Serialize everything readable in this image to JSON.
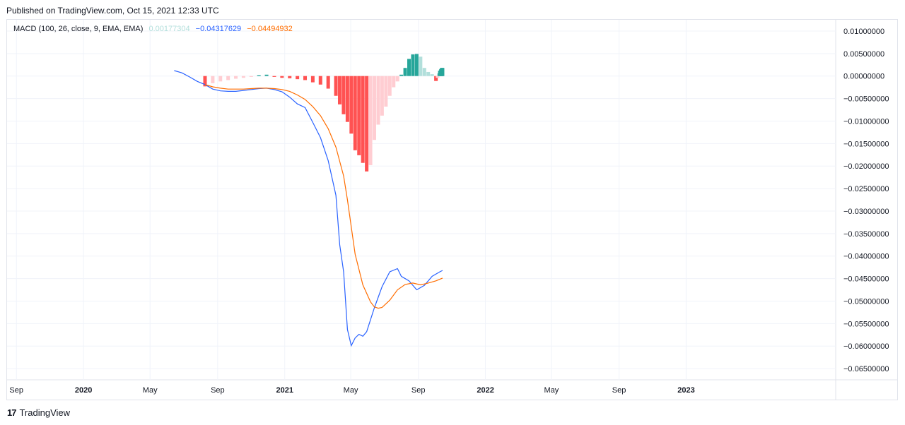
{
  "header": {
    "published": "Published on TradingView.com, Oct 15, 2021 12:33 UTC"
  },
  "legend": {
    "indicator": "MACD (100, 26, close, 9, EMA, EMA)",
    "histogram_value": "0.00177304",
    "macd_value": "−0.04317629",
    "signal_value": "−0.04494932"
  },
  "footer": {
    "brand": "TradingView",
    "logo": "17"
  },
  "colors": {
    "macd": "#2962ff",
    "signal": "#ff6d00",
    "hist_neg_strong": "#ff5252",
    "hist_neg_weak": "#ffcdd2",
    "hist_pos_strong": "#26a69a",
    "hist_pos_weak": "#b2dfdb",
    "grid": "#f0f3fa"
  },
  "chart_data": {
    "type": "line",
    "title": "MACD (100, 26, close, 9, EMA, EMA)",
    "x_type": "date",
    "xlim": [
      "2019-08-15",
      "2023-09-30"
    ],
    "ylim": [
      -0.0675,
      0.0125
    ],
    "grid": true,
    "x_ticks": [
      {
        "date": "2019-09-01",
        "label": "Sep"
      },
      {
        "date": "2020-01-01",
        "label": "2020"
      },
      {
        "date": "2020-05-01",
        "label": "May"
      },
      {
        "date": "2020-09-01",
        "label": "Sep"
      },
      {
        "date": "2021-01-01",
        "label": "2021"
      },
      {
        "date": "2021-05-01",
        "label": "May"
      },
      {
        "date": "2021-09-01",
        "label": "Sep"
      },
      {
        "date": "2022-01-01",
        "label": "2022"
      },
      {
        "date": "2022-05-01",
        "label": "May"
      },
      {
        "date": "2022-09-01",
        "label": "Sep"
      },
      {
        "date": "2023-01-01",
        "label": "2023"
      }
    ],
    "y_ticks": [
      {
        "value": 0.01,
        "label": "0.01000000"
      },
      {
        "value": 0.005,
        "label": "0.00500000"
      },
      {
        "value": 0.0,
        "label": "0.00000000"
      },
      {
        "value": -0.005,
        "label": "−0.00500000"
      },
      {
        "value": -0.01,
        "label": "−0.01000000"
      },
      {
        "value": -0.015,
        "label": "−0.01500000"
      },
      {
        "value": -0.02,
        "label": "−0.02000000"
      },
      {
        "value": -0.025,
        "label": "−0.02500000"
      },
      {
        "value": -0.03,
        "label": "−0.03000000"
      },
      {
        "value": -0.035,
        "label": "−0.03500000"
      },
      {
        "value": -0.04,
        "label": "−0.04000000"
      },
      {
        "value": -0.045,
        "label": "−0.04500000"
      },
      {
        "value": -0.05,
        "label": "−0.05000000"
      },
      {
        "value": -0.055,
        "label": "−0.05500000"
      },
      {
        "value": -0.06,
        "label": "−0.06000000"
      },
      {
        "value": -0.065,
        "label": "−0.06500000"
      }
    ],
    "series": [
      {
        "name": "MACD",
        "color": "#2962ff",
        "points": [
          [
            "2020-06-14",
            0.0012
          ],
          [
            "2020-06-28",
            0.0007
          ],
          [
            "2020-07-12",
            -0.0002
          ],
          [
            "2020-07-26",
            -0.0012
          ],
          [
            "2020-08-09",
            -0.0019
          ],
          [
            "2020-08-23",
            -0.0029
          ],
          [
            "2020-09-06",
            -0.0033
          ],
          [
            "2020-09-20",
            -0.0034
          ],
          [
            "2020-10-04",
            -0.0034
          ],
          [
            "2020-10-18",
            -0.0032
          ],
          [
            "2020-11-01",
            -0.003
          ],
          [
            "2020-11-15",
            -0.0028
          ],
          [
            "2020-11-29",
            -0.0027
          ],
          [
            "2020-12-13",
            -0.003
          ],
          [
            "2020-12-27",
            -0.0035
          ],
          [
            "2021-01-10",
            -0.0047
          ],
          [
            "2021-01-24",
            -0.0062
          ],
          [
            "2021-02-07",
            -0.007
          ],
          [
            "2021-02-21",
            -0.0103
          ],
          [
            "2021-03-07",
            -0.0137
          ],
          [
            "2021-03-21",
            -0.0188
          ],
          [
            "2021-04-04",
            -0.0265
          ],
          [
            "2021-04-11",
            -0.0375
          ],
          [
            "2021-04-18",
            -0.0435
          ],
          [
            "2021-04-25",
            -0.0563
          ],
          [
            "2021-05-02",
            -0.0599
          ],
          [
            "2021-05-09",
            -0.0582
          ],
          [
            "2021-05-16",
            -0.0574
          ],
          [
            "2021-05-23",
            -0.0578
          ],
          [
            "2021-05-30",
            -0.0568
          ],
          [
            "2021-06-13",
            -0.0515
          ],
          [
            "2021-06-27",
            -0.0468
          ],
          [
            "2021-07-11",
            -0.0435
          ],
          [
            "2021-07-25",
            -0.0428
          ],
          [
            "2021-08-01",
            -0.0445
          ],
          [
            "2021-08-15",
            -0.0455
          ],
          [
            "2021-08-29",
            -0.0475
          ],
          [
            "2021-09-12",
            -0.0465
          ],
          [
            "2021-09-26",
            -0.0445
          ],
          [
            "2021-10-10",
            -0.0435
          ],
          [
            "2021-10-15",
            -0.0432
          ]
        ]
      },
      {
        "name": "Signal",
        "color": "#ff6d00",
        "points": [
          [
            "2020-08-09",
            -0.0019
          ],
          [
            "2020-08-23",
            -0.0024
          ],
          [
            "2020-09-06",
            -0.0027
          ],
          [
            "2020-09-20",
            -0.0029
          ],
          [
            "2020-10-04",
            -0.0029
          ],
          [
            "2020-10-18",
            -0.0029
          ],
          [
            "2020-11-01",
            -0.0028
          ],
          [
            "2020-11-15",
            -0.0027
          ],
          [
            "2020-11-29",
            -0.0027
          ],
          [
            "2020-12-13",
            -0.0028
          ],
          [
            "2020-12-27",
            -0.003
          ],
          [
            "2021-01-10",
            -0.0034
          ],
          [
            "2021-01-24",
            -0.0042
          ],
          [
            "2021-02-07",
            -0.0052
          ],
          [
            "2021-02-21",
            -0.0068
          ],
          [
            "2021-03-07",
            -0.0088
          ],
          [
            "2021-03-21",
            -0.0117
          ],
          [
            "2021-04-04",
            -0.0158
          ],
          [
            "2021-04-18",
            -0.0222
          ],
          [
            "2021-04-25",
            -0.0275
          ],
          [
            "2021-05-02",
            -0.0335
          ],
          [
            "2021-05-09",
            -0.0396
          ],
          [
            "2021-05-23",
            -0.0464
          ],
          [
            "2021-06-06",
            -0.0502
          ],
          [
            "2021-06-13",
            -0.0513
          ],
          [
            "2021-06-20",
            -0.0516
          ],
          [
            "2021-06-27",
            -0.0514
          ],
          [
            "2021-07-11",
            -0.0498
          ],
          [
            "2021-07-25",
            -0.0475
          ],
          [
            "2021-08-08",
            -0.0463
          ],
          [
            "2021-08-22",
            -0.046
          ],
          [
            "2021-09-05",
            -0.0464
          ],
          [
            "2021-09-19",
            -0.046
          ],
          [
            "2021-10-03",
            -0.0455
          ],
          [
            "2021-10-15",
            -0.0449
          ]
        ]
      }
    ],
    "histogram": {
      "name": "Histogram",
      "bars": [
        [
          "2020-08-09",
          -0.0023
        ],
        [
          "2020-08-23",
          -0.0016
        ],
        [
          "2020-09-06",
          -0.0012
        ],
        [
          "2020-09-20",
          -0.0009
        ],
        [
          "2020-10-04",
          -0.0006
        ],
        [
          "2020-10-18",
          -0.0004
        ],
        [
          "2020-11-01",
          -0.0002
        ],
        [
          "2020-11-15",
          0.0002
        ],
        [
          "2020-11-29",
          0.0003
        ],
        [
          "2020-12-13",
          -0.0002
        ],
        [
          "2020-12-27",
          -0.0004
        ],
        [
          "2021-01-10",
          -0.0005
        ],
        [
          "2021-01-24",
          -0.0007
        ],
        [
          "2021-02-07",
          -0.0009
        ],
        [
          "2021-02-21",
          -0.0014
        ],
        [
          "2021-03-07",
          -0.0019
        ],
        [
          "2021-03-21",
          -0.0028
        ],
        [
          "2021-04-04",
          -0.0044
        ],
        [
          "2021-04-11",
          -0.0063
        ],
        [
          "2021-04-18",
          -0.0085
        ],
        [
          "2021-04-25",
          -0.0102
        ],
        [
          "2021-05-02",
          -0.0128
        ],
        [
          "2021-05-09",
          -0.0165
        ],
        [
          "2021-05-16",
          -0.0176
        ],
        [
          "2021-05-23",
          -0.0193
        ],
        [
          "2021-05-30",
          -0.0212
        ],
        [
          "2021-06-06",
          -0.0198
        ],
        [
          "2021-06-13",
          -0.0142
        ],
        [
          "2021-06-20",
          -0.0108
        ],
        [
          "2021-06-27",
          -0.0088
        ],
        [
          "2021-07-04",
          -0.0068
        ],
        [
          "2021-07-11",
          -0.0044
        ],
        [
          "2021-07-18",
          -0.0025
        ],
        [
          "2021-07-25",
          -0.0012
        ],
        [
          "2021-08-01",
          0.0003
        ],
        [
          "2021-08-08",
          0.0018
        ],
        [
          "2021-08-15",
          0.0038
        ],
        [
          "2021-08-22",
          0.0048
        ],
        [
          "2021-08-29",
          0.0049
        ],
        [
          "2021-09-05",
          0.0043
        ],
        [
          "2021-09-12",
          0.0018
        ],
        [
          "2021-09-19",
          0.0009
        ],
        [
          "2021-09-26",
          0.0004
        ],
        [
          "2021-10-03",
          -0.0011
        ],
        [
          "2021-10-06",
          -0.0004
        ],
        [
          "2021-10-09",
          0.0006
        ],
        [
          "2021-10-10",
          0.0012
        ],
        [
          "2021-10-12",
          0.0015
        ],
        [
          "2021-10-13",
          0.0017
        ],
        [
          "2021-10-14",
          0.0018
        ],
        [
          "2021-10-15",
          0.0018
        ]
      ]
    }
  }
}
